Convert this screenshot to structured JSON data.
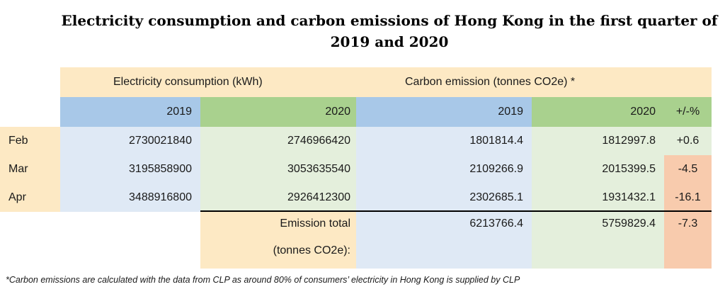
{
  "title": {
    "line1": "Electricity consumption and carbon emissions of Hong Kong in the first quarter of",
    "line2": "2019 and 2020"
  },
  "headers": {
    "electricity": "Electricity consumption (kWh)",
    "carbon": "Carbon emission (tonnes CO2e) *",
    "elec_2019": "2019",
    "elec_2020": "2020",
    "carb_2019": "2019",
    "carb_2020": "2020",
    "change": "+/-%"
  },
  "rows": [
    {
      "month": "Feb",
      "elec_2019": "2730021840",
      "elec_2020": "2746966420",
      "carb_2019": "1801814.4",
      "carb_2020": "1812997.8",
      "change": "+0.6"
    },
    {
      "month": "Mar",
      "elec_2019": "3195858900",
      "elec_2020": "3053635540",
      "carb_2019": "2109266.9",
      "carb_2020": "2015399.5",
      "change": "-4.5"
    },
    {
      "month": "Apr",
      "elec_2019": "3488916800",
      "elec_2020": "2926412300",
      "carb_2019": "2302685.1",
      "carb_2020": "1931432.1",
      "change": "-16.1"
    }
  ],
  "total": {
    "label_line1": "Emission total",
    "label_line2": "(tonnes CO2e):",
    "carb_2019": "6213766.4",
    "carb_2020": "5759829.4",
    "change": "-7.3"
  },
  "footnote": "*Carbon emissions are calculated with the data from CLP as around 80% of consumers’ electricity in Hong Kong is supplied by CLP",
  "colors": {
    "yellow": "#fde9c4",
    "blue_light": "#dfe9f5",
    "blue_header": "#a8c8e8",
    "green_light": "#e4efdc",
    "green_header": "#a9d18e",
    "peach": "#f8cbad"
  }
}
